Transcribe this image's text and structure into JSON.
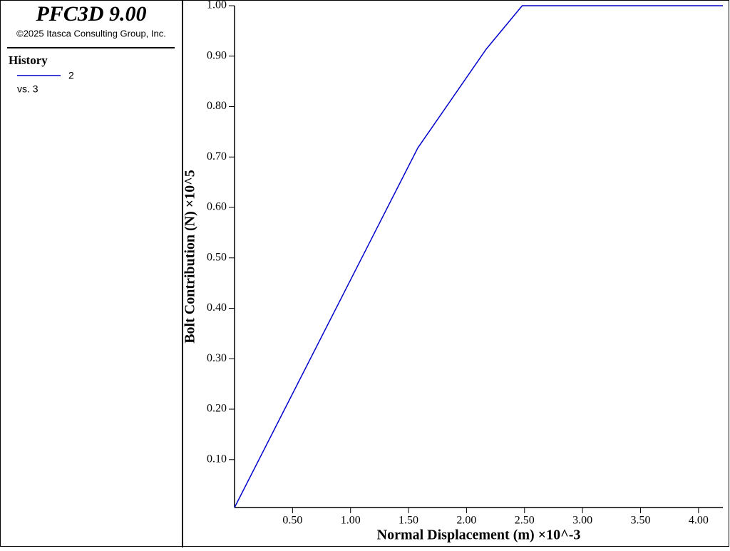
{
  "app_title": "PFC3D 9.00",
  "copyright": "©2025 Itasca Consulting Group, Inc.",
  "legend_title": "History",
  "history_against": "vs. 3",
  "chart_data": {
    "type": "line",
    "x_label": "Normal Displacement (m)  ×10^-3",
    "y_label": "Bolt Contribution (N)  ×10^5",
    "x": [
      0,
      1.58,
      2.17,
      2.48,
      4.21
    ],
    "series": [
      {
        "name": "2",
        "color": "#0000cc",
        "values": [
          0.005,
          0.718,
          0.914,
          1.0,
          1.0
        ]
      }
    ],
    "xlim": [
      0,
      4.21
    ],
    "ylim": [
      0.005,
      1.0
    ],
    "xticks": [
      {
        "value": 0.5,
        "label": "0.50"
      },
      {
        "value": 1,
        "label": "1.00"
      },
      {
        "value": 1.5,
        "label": "1.50"
      },
      {
        "value": 2,
        "label": "2.00"
      },
      {
        "value": 2.5,
        "label": "2.50"
      },
      {
        "value": 3,
        "label": "3.00"
      },
      {
        "value": 3.5,
        "label": "3.50"
      },
      {
        "value": 4,
        "label": "4.00"
      }
    ],
    "yticks": [
      {
        "value": 0.1,
        "label": "0.10"
      },
      {
        "value": 0.2,
        "label": "0.20"
      },
      {
        "value": 0.3,
        "label": "0.30"
      },
      {
        "value": 0.4,
        "label": "0.40"
      },
      {
        "value": 0.5,
        "label": "0.50"
      },
      {
        "value": 0.6,
        "label": "0.60"
      },
      {
        "value": 0.7,
        "label": "0.70"
      },
      {
        "value": 0.8,
        "label": "0.80"
      },
      {
        "value": 0.9,
        "label": "0.90"
      },
      {
        "value": 1,
        "label": "1.00"
      }
    ]
  }
}
